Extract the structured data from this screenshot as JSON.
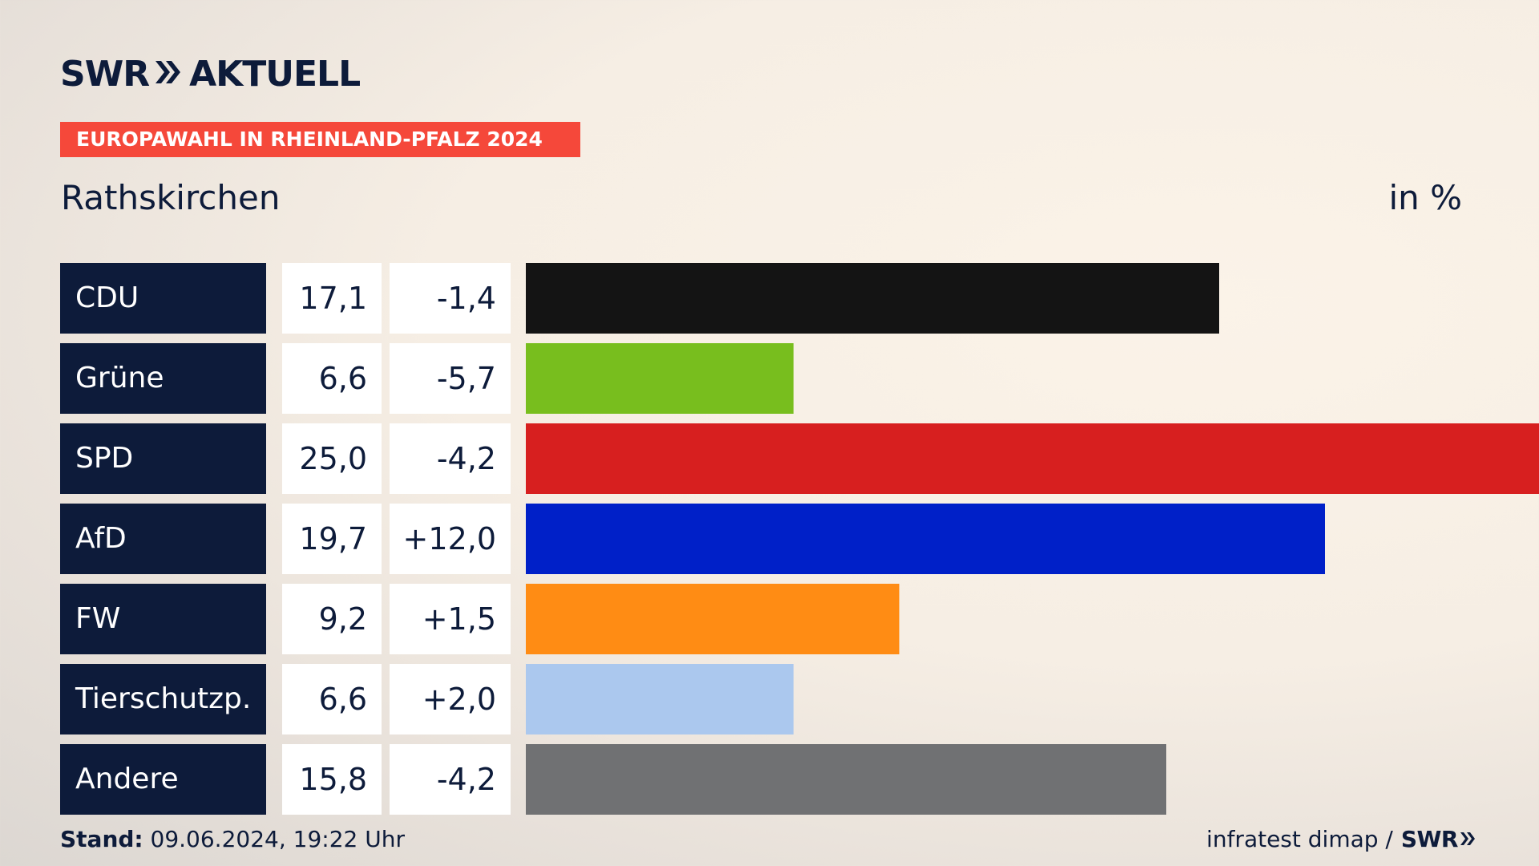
{
  "header": {
    "logo_swr": "SWR",
    "logo_aktuell": "AKTUELL",
    "banner": "EUROPAWAHL IN RHEINLAND-PFALZ 2024",
    "title": "Rathskirchen",
    "unit": "in %"
  },
  "colors": {
    "navy": "#0d1b3a",
    "banner_red": "#f5483a"
  },
  "chart_data": {
    "type": "bar",
    "orientation": "horizontal",
    "title": "Rathskirchen",
    "unit": "in %",
    "categories": [
      "CDU",
      "Grüne",
      "SPD",
      "AfD",
      "FW",
      "Tierschutzp.",
      "Andere"
    ],
    "values": [
      17.1,
      6.6,
      25.0,
      19.7,
      9.2,
      6.6,
      15.8
    ],
    "value_labels": [
      "17,1",
      "6,6",
      "25,0",
      "19,7",
      "9,2",
      "6,6",
      "15,8"
    ],
    "change_labels": [
      "-1,4",
      "-5,7",
      "-4,2",
      "+12,0",
      "+1,5",
      "+2,0",
      "-4,2"
    ],
    "changes": [
      -1.4,
      -5.7,
      -4.2,
      12.0,
      1.5,
      2.0,
      -4.2
    ],
    "colors": [
      "#141414",
      "#78be1e",
      "#d71f1f",
      "#0020c8",
      "#ff8c14",
      "#abc8ee",
      "#707173"
    ],
    "xlim": [
      0,
      25.0
    ],
    "grid": false,
    "legend": "none"
  },
  "footer": {
    "stand_label": "Stand:",
    "stand_value": " 09.06.2024, 19:22 Uhr",
    "source": "infratest dimap /",
    "source_brand": "SWR"
  }
}
